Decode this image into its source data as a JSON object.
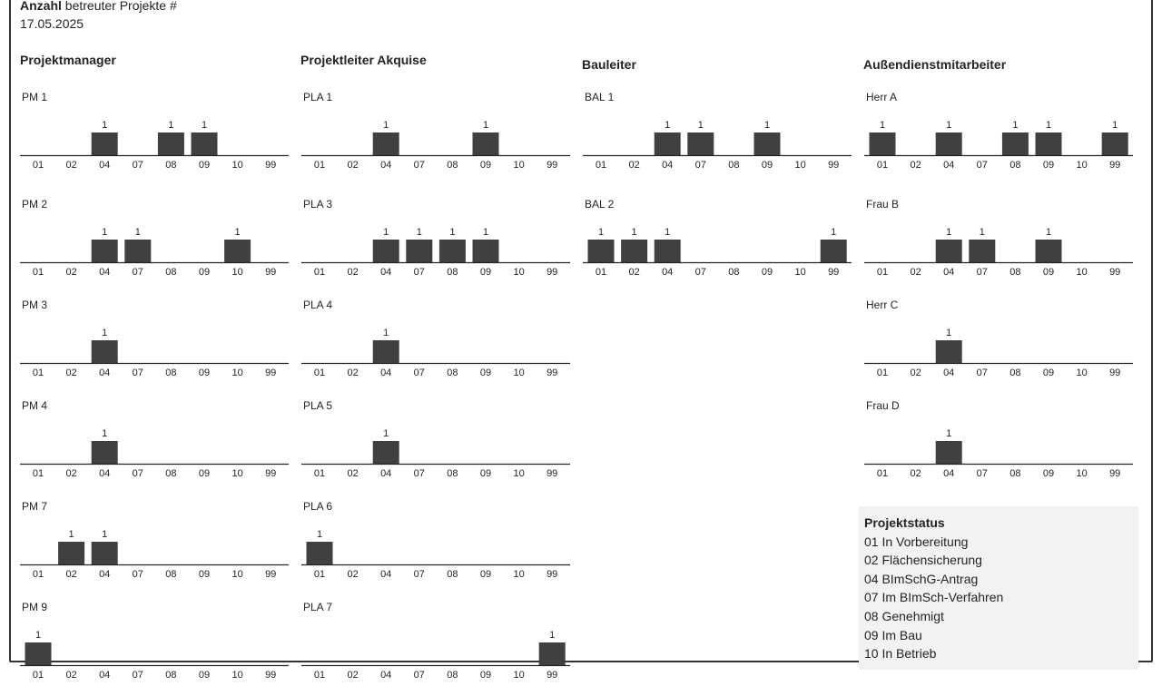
{
  "header": {
    "title_bold": "Anzahl",
    "title_rest": " betreuter Projekte #",
    "date": "17.05.2025"
  },
  "columns": [
    {
      "title": "Projektmanager"
    },
    {
      "title": "Projektleiter Akquise"
    },
    {
      "title": "Bauleiter"
    },
    {
      "title": "Außendienstmitarbeiter"
    }
  ],
  "chart_data": {
    "type": "bar",
    "categories": [
      "01",
      "02",
      "04",
      "07",
      "08",
      "09",
      "10",
      "99"
    ],
    "panels": [
      {
        "column": 0,
        "title": "PM 1",
        "values": [
          0,
          0,
          1,
          0,
          1,
          1,
          0,
          0
        ]
      },
      {
        "column": 0,
        "title": "PM 2",
        "values": [
          0,
          0,
          1,
          1,
          0,
          0,
          1,
          0
        ]
      },
      {
        "column": 0,
        "title": "PM 3",
        "values": [
          0,
          0,
          1,
          0,
          0,
          0,
          0,
          0
        ]
      },
      {
        "column": 0,
        "title": "PM 4",
        "values": [
          0,
          0,
          1,
          0,
          0,
          0,
          0,
          0
        ]
      },
      {
        "column": 0,
        "title": "PM 7",
        "values": [
          0,
          1,
          1,
          0,
          0,
          0,
          0,
          0
        ]
      },
      {
        "column": 0,
        "title": "PM 9",
        "values": [
          1,
          0,
          0,
          0,
          0,
          0,
          0,
          0
        ]
      },
      {
        "column": 1,
        "title": "PLA 1",
        "values": [
          0,
          0,
          1,
          0,
          0,
          1,
          0,
          0
        ]
      },
      {
        "column": 1,
        "title": "PLA 3",
        "values": [
          0,
          0,
          1,
          1,
          1,
          1,
          0,
          0
        ]
      },
      {
        "column": 1,
        "title": "PLA 4",
        "values": [
          0,
          0,
          1,
          0,
          0,
          0,
          0,
          0
        ]
      },
      {
        "column": 1,
        "title": "PLA 5",
        "values": [
          0,
          0,
          1,
          0,
          0,
          0,
          0,
          0
        ]
      },
      {
        "column": 1,
        "title": "PLA 6",
        "values": [
          1,
          0,
          0,
          0,
          0,
          0,
          0,
          0
        ]
      },
      {
        "column": 1,
        "title": "PLA 7",
        "values": [
          0,
          0,
          0,
          0,
          0,
          0,
          0,
          1
        ]
      },
      {
        "column": 2,
        "title": "BAL 1",
        "values": [
          0,
          0,
          1,
          1,
          0,
          1,
          0,
          0
        ]
      },
      {
        "column": 2,
        "title": "BAL 2",
        "values": [
          1,
          1,
          1,
          0,
          0,
          0,
          0,
          1
        ]
      },
      {
        "column": 3,
        "title": "Herr A",
        "values": [
          1,
          0,
          1,
          0,
          1,
          1,
          0,
          1
        ]
      },
      {
        "column": 3,
        "title": "Frau B",
        "values": [
          0,
          0,
          1,
          1,
          0,
          1,
          0,
          0
        ]
      },
      {
        "column": 3,
        "title": "Herr C",
        "values": [
          0,
          0,
          1,
          0,
          0,
          0,
          0,
          0
        ]
      },
      {
        "column": 3,
        "title": "Frau D",
        "values": [
          0,
          0,
          1,
          0,
          0,
          0,
          0,
          0
        ]
      }
    ],
    "bar_color": "#404040",
    "ylim": [
      0,
      1
    ]
  },
  "legend": {
    "title": "Projektstatus",
    "items": [
      "01 In Vorbereitung",
      "02 Flächensicherung",
      "04 BImSchG-Antrag",
      "07 Im BImSch-Verfahren",
      "08 Genehmigt",
      "09 Im Bau",
      "10 In Betrieb"
    ]
  }
}
